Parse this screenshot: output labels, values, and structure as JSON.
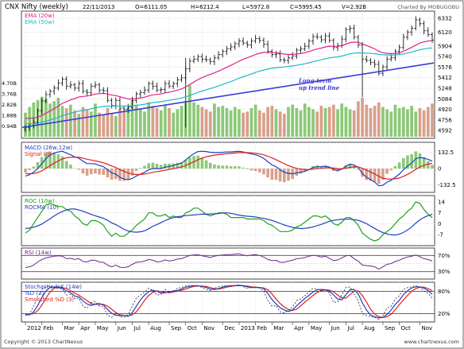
{
  "header": {
    "title": "CNX Nifty (weekly)",
    "date": "22/11/2013",
    "open": "O=6111.05",
    "high": "H=6212.4",
    "low": "L=5972.8",
    "close": "C=5995.45",
    "volume": "V=2.92B",
    "credit": "Charted By MOBUGOBU"
  },
  "footer": {
    "copyright": "Copyright © 2013 ChartNexus",
    "url": "www.chartnexus.com"
  },
  "colors": {
    "bull": "#1a1a1a",
    "ema20": "#e0208a",
    "ema50": "#20b8c8",
    "trend": "#3a3ad8",
    "vol_up": "#8cc878",
    "vol_down": "#d8a08a",
    "macd": "#2040c0",
    "signal": "#e02020",
    "roc": "#20a020",
    "rocma": "#2040c0",
    "rsi": "#6a2a8a",
    "stoch_k": "#2040c0",
    "stoch_d": "#e02020"
  },
  "chart_data": [
    {
      "id": "price",
      "type": "ohlc",
      "legend": [
        "EMA (20w)",
        "EMA (50w)"
      ],
      "annotation": [
        "Long-term",
        "up trend line"
      ],
      "yticks": [
        "6332",
        "6120",
        "5904",
        "5740",
        "5576",
        "5412",
        "5248",
        "5084",
        "4920",
        "4756",
        "4592"
      ],
      "volume_ticks": [
        "4.70B",
        "3.76B",
        "2.82B",
        "1.88B",
        "0.94B"
      ],
      "ylim": [
        4520,
        6420
      ],
      "weeks": 100,
      "close": [
        4640,
        4660,
        4720,
        4900,
        5050,
        5150,
        5200,
        5250,
        5330,
        5390,
        5280,
        5300,
        5250,
        5320,
        5200,
        5180,
        5280,
        5300,
        5220,
        5210,
        5060,
        4980,
        5060,
        4940,
        4920,
        4960,
        5060,
        5160,
        5180,
        5220,
        5320,
        5280,
        5220,
        5230,
        5320,
        5280,
        5320,
        5380,
        5410,
        5550,
        5670,
        5700,
        5740,
        5700,
        5690,
        5660,
        5720,
        5770,
        5820,
        5860,
        5890,
        5940,
        5980,
        5950,
        5920,
        5980,
        6020,
        5990,
        5930,
        5820,
        5770,
        5780,
        5690,
        5680,
        5720,
        5750,
        5840,
        5860,
        5900,
        5980,
        6050,
        6040,
        6000,
        6060,
        5990,
        5880,
        5910,
        6010,
        6160,
        6180,
        6040,
        5920,
        5700,
        5680,
        5650,
        5620,
        5480,
        5580,
        5700,
        5720,
        5820,
        5880,
        6040,
        6120,
        6180,
        6310,
        6250,
        6140,
        6080,
        5995
      ],
      "ema20": [
        4780,
        4782,
        4786,
        4800,
        4826,
        4860,
        4895,
        4931,
        4971,
        5013,
        5040,
        5068,
        5088,
        5112,
        5121,
        5127,
        5142,
        5158,
        5164,
        5169,
        5158,
        5141,
        5135,
        5116,
        5097,
        5082,
        5080,
        5088,
        5097,
        5110,
        5130,
        5145,
        5152,
        5159,
        5176,
        5187,
        5201,
        5219,
        5238,
        5268,
        5306,
        5344,
        5382,
        5413,
        5440,
        5462,
        5487,
        5514,
        5543,
        5573,
        5603,
        5635,
        5669,
        5697,
        5720,
        5745,
        5771,
        5791,
        5804,
        5805,
        5802,
        5801,
        5790,
        5779,
        5774,
        5773,
        5779,
        5787,
        5799,
        5817,
        5839,
        5857,
        5871,
        5890,
        5900,
        5898,
        5899,
        5909,
        5933,
        5956,
        5965,
        5961,
        5936,
        5911,
        5886,
        5859,
        5822,
        5799,
        5790,
        5784,
        5788,
        5797,
        5823,
        5851,
        5882,
        5918,
        5950,
        5968,
        5979,
        5989
      ],
      "ema50": [
        4700,
        4697,
        4698,
        4706,
        4720,
        4737,
        4756,
        4776,
        4799,
        4823,
        4842,
        4860,
        4875,
        4892,
        4904,
        4915,
        4929,
        4944,
        4955,
        4966,
        4970,
        4970,
        4974,
        4973,
        4971,
        4971,
        4975,
        4983,
        4991,
        5000,
        5013,
        5024,
        5032,
        5040,
        5051,
        5061,
        5071,
        5084,
        5097,
        5115,
        5137,
        5160,
        5184,
        5205,
        5225,
        5243,
        5263,
        5284,
        5306,
        5330,
        5353,
        5378,
        5404,
        5427,
        5448,
        5470,
        5493,
        5514,
        5532,
        5545,
        5556,
        5567,
        5574,
        5579,
        5587,
        5595,
        5605,
        5616,
        5628,
        5643,
        5660,
        5676,
        5690,
        5706,
        5719,
        5727,
        5735,
        5747,
        5765,
        5783,
        5793,
        5798,
        5795,
        5792,
        5788,
        5783,
        5773,
        5767,
        5765,
        5763,
        5765,
        5770,
        5780,
        5793,
        5808,
        5828,
        5845,
        5858,
        5868,
        5874
      ],
      "trendline": [
        [
          0,
          4640
        ],
        [
          99,
          5640
        ]
      ],
      "volume_b": [
        2.1,
        2.6,
        3.0,
        3.2,
        3.5,
        3.3,
        2.9,
        3.1,
        3.4,
        2.7,
        2.5,
        2.8,
        2.3,
        2.0,
        2.6,
        2.4,
        2.2,
        2.9,
        2.1,
        1.9,
        2.5,
        2.0,
        1.8,
        2.4,
        2.2,
        2.6,
        3.2,
        2.8,
        2.4,
        2.2,
        3.0,
        2.7,
        2.5,
        2.3,
        2.8,
        2.5,
        2.1,
        2.4,
        2.7,
        3.1,
        4.5,
        3.0,
        2.8,
        2.6,
        2.4,
        2.2,
        2.9,
        2.6,
        2.7,
        2.5,
        2.3,
        2.6,
        2.4,
        2.1,
        2.2,
        2.5,
        2.8,
        2.3,
        2.1,
        2.6,
        2.7,
        2.4,
        2.2,
        2.0,
        2.6,
        2.8,
        2.5,
        2.3,
        2.9,
        2.6,
        2.4,
        2.2,
        2.7,
        2.5,
        2.6,
        2.8,
        2.4,
        2.9,
        2.6,
        2.4,
        2.3,
        3.1,
        3.4,
        2.8,
        2.5,
        2.7,
        3.0,
        2.6,
        2.4,
        2.2,
        2.8,
        2.5,
        2.6,
        2.4,
        2.7,
        2.2,
        2.5,
        2.3,
        2.6,
        2.9
      ]
    },
    {
      "id": "macd",
      "type": "line+histogram",
      "legend": [
        "MACD (26w,12w)",
        "Signal (9)"
      ],
      "yticks": [
        "132.5",
        "0",
        "-132.5"
      ],
      "ylim": [
        -180,
        200
      ],
      "macd": [
        -60,
        -50,
        -30,
        0,
        40,
        80,
        110,
        125,
        135,
        140,
        125,
        112,
        95,
        85,
        60,
        40,
        40,
        38,
        25,
        15,
        -10,
        -35,
        -45,
        -70,
        -85,
        -90,
        -80,
        -60,
        -45,
        -30,
        -10,
        0,
        0,
        0,
        12,
        18,
        25,
        35,
        45,
        70,
        98,
        120,
        138,
        140,
        138,
        132,
        130,
        130,
        132,
        135,
        135,
        138,
        140,
        135,
        125,
        118,
        112,
        100,
        82,
        55,
        30,
        15,
        -10,
        -30,
        -38,
        -42,
        -35,
        -30,
        -22,
        -8,
        8,
        15,
        15,
        20,
        12,
        -8,
        -15,
        -5,
        20,
        35,
        30,
        8,
        -40,
        -70,
        -90,
        -110,
        -140,
        -135,
        -110,
        -95,
        -70,
        -45,
        -10,
        20,
        45,
        80,
        90,
        85,
        75,
        60
      ],
      "signal": [
        -40,
        -42,
        -40,
        -32,
        -18,
        2,
        24,
        44,
        62,
        78,
        87,
        92,
        93,
        91,
        85,
        76,
        69,
        63,
        55,
        47,
        35,
        21,
        8,
        -8,
        -23,
        -36,
        -45,
        -48,
        -48,
        -44,
        -37,
        -30,
        -24,
        -19,
        -13,
        -7,
        -1,
        6,
        14,
        25,
        40,
        56,
        72,
        86,
        96,
        103,
        109,
        113,
        117,
        120,
        123,
        126,
        129,
        130,
        129,
        127,
        124,
        119,
        112,
        100,
        86,
        72,
        56,
        39,
        24,
        11,
        2,
        -4,
        -8,
        -8,
        -5,
        -1,
        2,
        6,
        7,
        4,
        0,
        -1,
        3,
        10,
        14,
        13,
        2,
        -12,
        -28,
        -44,
        -63,
        -78,
        -84,
        -86,
        -83,
        -76,
        -63,
        -47,
        -28,
        -7,
        13,
        27,
        37,
        42
      ]
    },
    {
      "id": "roc",
      "type": "line",
      "legend": [
        "ROC (10w)",
        "ROCMA (10)"
      ],
      "yticks": [
        "14",
        "7",
        "0",
        "-7"
      ],
      "ylim": [
        -13,
        17
      ],
      "roc": [
        -6,
        -4,
        0,
        4,
        8,
        12,
        13,
        12,
        11,
        11,
        9,
        8,
        5,
        3,
        0,
        -1,
        2,
        2,
        1,
        -1,
        -5,
        -8,
        -6,
        -8,
        -8,
        -6,
        -4,
        -1,
        1,
        3,
        7,
        7,
        5,
        5,
        6,
        4,
        5,
        4,
        4,
        7,
        8,
        10,
        10,
        8,
        6,
        5,
        6,
        7,
        7,
        6,
        4,
        4,
        4,
        4,
        3,
        3,
        3,
        3,
        2,
        0,
        -1,
        -3,
        -5,
        -5,
        -5,
        -4,
        -2,
        -1,
        1,
        3,
        5,
        5,
        4,
        5,
        3,
        0,
        -1,
        1,
        4,
        4,
        2,
        -1,
        -6,
        -8,
        -10,
        -11,
        -10,
        -7,
        -5,
        -3,
        0,
        3,
        5,
        8,
        10,
        14,
        13,
        9,
        6,
        4
      ],
      "rocma": [
        -3,
        -2.8,
        -2.2,
        -1.4,
        -0.2,
        1.5,
        3.2,
        5,
        6.6,
        7.8,
        8.8,
        9.4,
        9.4,
        8.8,
        8,
        7,
        6,
        5.1,
        4.3,
        3.4,
        2.2,
        0.6,
        -0.6,
        -2,
        -3.6,
        -4.6,
        -5.2,
        -5.4,
        -5.1,
        -4.5,
        -3.2,
        -1.6,
        -0.5,
        0.8,
        2,
        3.1,
        4,
        4.5,
        4.8,
        5.2,
        5.4,
        5.6,
        5.9,
        6.1,
        6.1,
        6.2,
        6.3,
        6.6,
        6.9,
        7,
        6.7,
        6.1,
        5.5,
        5.1,
        4.8,
        4.6,
        4.3,
        3.9,
        3.4,
        2.8,
        2.1,
        1.2,
        0.2,
        -0.8,
        -1.6,
        -2.3,
        -2.8,
        -3.1,
        -3,
        -2.6,
        -2,
        -1.2,
        -0.4,
        0.6,
        1.6,
        2.2,
        2.6,
        2.8,
        2.9,
        2.9,
        2.6,
        2.2,
        1.2,
        0,
        -1.5,
        -3,
        -4.5,
        -5.7,
        -6.5,
        -7.1,
        -7.2,
        -6.7,
        -5.6,
        -4,
        -2.1,
        0.4,
        2.5,
        4.1,
        5.2,
        6
      ]
    },
    {
      "id": "rsi",
      "type": "line",
      "legend": [
        "RSI (14w)"
      ],
      "yticks": [
        "70%",
        "30%"
      ],
      "ylim": [
        0,
        100
      ],
      "bands": [
        30,
        70
      ],
      "rsi": [
        40,
        42,
        46,
        54,
        60,
        64,
        66,
        68,
        69,
        68,
        62,
        63,
        60,
        62,
        55,
        54,
        58,
        58,
        54,
        53,
        46,
        42,
        46,
        41,
        40,
        42,
        48,
        53,
        54,
        56,
        60,
        58,
        54,
        55,
        59,
        56,
        58,
        61,
        62,
        66,
        70,
        71,
        72,
        69,
        67,
        65,
        68,
        70,
        71,
        72,
        72,
        73,
        74,
        71,
        69,
        71,
        72,
        70,
        66,
        60,
        57,
        58,
        53,
        53,
        56,
        58,
        62,
        63,
        65,
        68,
        70,
        69,
        66,
        68,
        63,
        57,
        59,
        64,
        69,
        70,
        62,
        56,
        46,
        45,
        44,
        42,
        36,
        42,
        48,
        50,
        55,
        58,
        63,
        66,
        68,
        71,
        67,
        62,
        60,
        56
      ]
    },
    {
      "id": "stochastic",
      "type": "line",
      "legend": [
        "Stochastic %K (14w)",
        "%D (3)",
        "Smoothed %D (3)"
      ],
      "yticks": [
        "80%",
        "20%"
      ],
      "ylim": [
        0,
        100
      ],
      "bands": [
        20,
        80
      ],
      "k": [
        15,
        20,
        40,
        65,
        85,
        92,
        94,
        90,
        88,
        86,
        70,
        72,
        60,
        62,
        40,
        35,
        50,
        52,
        40,
        38,
        15,
        10,
        22,
        12,
        10,
        18,
        40,
        62,
        70,
        78,
        88,
        82,
        70,
        72,
        85,
        78,
        80,
        88,
        90,
        94,
        96,
        95,
        95,
        90,
        85,
        82,
        88,
        92,
        94,
        95,
        95,
        96,
        97,
        92,
        88,
        90,
        92,
        88,
        80,
        55,
        40,
        42,
        25,
        22,
        30,
        38,
        55,
        60,
        68,
        78,
        88,
        86,
        80,
        85,
        75,
        50,
        52,
        70,
        90,
        92,
        72,
        55,
        20,
        15,
        12,
        10,
        5,
        15,
        35,
        40,
        60,
        68,
        85,
        90,
        92,
        95,
        90,
        80,
        75,
        62
      ],
      "d": [
        18,
        17,
        25,
        42,
        63,
        81,
        90,
        92,
        91,
        88,
        81,
        76,
        67,
        65,
        54,
        46,
        42,
        46,
        47,
        43,
        31,
        21,
        16,
        15,
        15,
        13,
        23,
        40,
        57,
        70,
        79,
        83,
        80,
        75,
        76,
        78,
        81,
        82,
        86,
        91,
        93,
        95,
        95,
        93,
        90,
        86,
        85,
        87,
        91,
        94,
        95,
        95,
        96,
        95,
        92,
        90,
        90,
        90,
        87,
        74,
        58,
        46,
        36,
        30,
        26,
        30,
        41,
        51,
        61,
        69,
        78,
        84,
        85,
        84,
        80,
        70,
        59,
        57,
        71,
        84,
        85,
        73,
        49,
        30,
        16,
        12,
        9,
        10,
        18,
        30,
        45,
        56,
        71,
        81,
        89,
        92,
        92,
        88,
        82,
        72
      ],
      "sd": [
        20,
        19,
        20,
        28,
        43,
        62,
        78,
        88,
        91,
        90,
        87,
        82,
        75,
        70,
        62,
        55,
        47,
        45,
        45,
        45,
        40,
        32,
        23,
        17,
        15,
        14,
        17,
        25,
        40,
        56,
        69,
        77,
        81,
        79,
        77,
        76,
        78,
        80,
        83,
        86,
        90,
        93,
        94,
        94,
        93,
        90,
        87,
        86,
        88,
        91,
        93,
        95,
        95,
        95,
        94,
        92,
        91,
        90,
        89,
        84,
        73,
        59,
        47,
        38,
        31,
        29,
        32,
        41,
        51,
        60,
        69,
        77,
        82,
        84,
        83,
        78,
        70,
        62,
        62,
        71,
        80,
        81,
        69,
        51,
        32,
        19,
        12,
        10,
        12,
        19,
        31,
        44,
        57,
        69,
        80,
        87,
        91,
        91,
        87,
        81
      ]
    },
    {
      "id": "time_axis",
      "type": "axis",
      "labels": [
        "2012",
        "Feb",
        "Mar",
        "Apr",
        "May",
        "Jun",
        "Jul",
        "Aug",
        "Sep",
        "Oct",
        "Nov",
        "Dec",
        "2013",
        "Feb",
        "Mar",
        "Apr",
        "May",
        "Jun",
        "Jul",
        "Aug",
        "Sep",
        "Oct",
        "Nov"
      ],
      "label_weeks": [
        0,
        4,
        9,
        13,
        17,
        22,
        26,
        30,
        35,
        39,
        43,
        48,
        52,
        56,
        60,
        65,
        69,
        74,
        78,
        82,
        87,
        91,
        96
      ]
    }
  ]
}
